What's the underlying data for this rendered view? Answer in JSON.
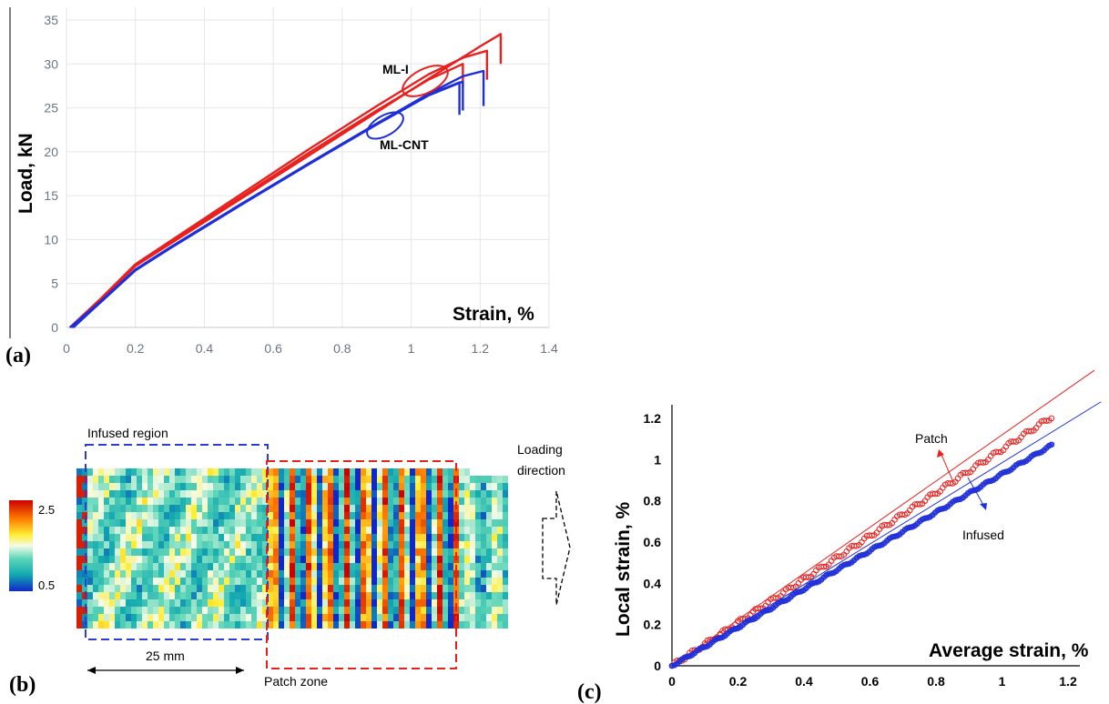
{
  "chart_data": [
    {
      "panel": "(a)",
      "type": "line",
      "xlabel": "Strain, %",
      "ylabel": "Load, kN",
      "xlim": [
        0,
        1.4
      ],
      "ylim": [
        0,
        35
      ],
      "x_ticks": [
        "0",
        "0.2",
        "0.4",
        "0.6",
        "0.8",
        "1",
        "1.2",
        "1.4"
      ],
      "y_ticks": [
        "0",
        "5",
        "10",
        "15",
        "20",
        "25",
        "30",
        "35"
      ],
      "grid": true,
      "colors": {
        "ML-I": "#e8211e",
        "ML-CNT": "#1f2fd8"
      },
      "annotations": [
        {
          "text": "ML-I",
          "x": 1.04,
          "y": 28.1,
          "color": "#e8211e"
        },
        {
          "text": "ML-CNT",
          "x": 0.93,
          "y": 22.6,
          "color": "#1f2fd8"
        }
      ],
      "series": [
        {
          "group": "ML-I",
          "x": [
            0.02,
            0.1,
            0.2,
            0.3,
            0.5,
            0.7,
            0.9,
            1.05,
            1.2,
            1.26
          ],
          "y": [
            0,
            3.2,
            7.0,
            9.5,
            14.5,
            19.5,
            24.5,
            28.3,
            32.0,
            33.4
          ],
          "drop_to": 30.0
        },
        {
          "group": "ML-I",
          "x": [
            0.01,
            0.1,
            0.2,
            0.3,
            0.5,
            0.7,
            0.9,
            1.05,
            1.15,
            1.22
          ],
          "y": [
            0,
            3.3,
            7.2,
            9.8,
            15.0,
            20.2,
            25.2,
            28.8,
            30.7,
            31.5
          ],
          "drop_to": 28.2
        },
        {
          "group": "ML-I",
          "x": [
            0.015,
            0.1,
            0.2,
            0.3,
            0.5,
            0.7,
            0.9,
            1.05,
            1.15
          ],
          "y": [
            0,
            3.2,
            7.0,
            9.6,
            14.7,
            19.8,
            24.7,
            28.2,
            30.0
          ],
          "drop_to": 27.3
        },
        {
          "group": "ML-CNT",
          "x": [
            0.02,
            0.1,
            0.2,
            0.3,
            0.5,
            0.7,
            0.9,
            1.05,
            1.15,
            1.21
          ],
          "y": [
            0,
            2.9,
            6.5,
            9.0,
            13.8,
            18.6,
            23.2,
            26.6,
            28.6,
            29.2
          ],
          "drop_to": 25.2
        },
        {
          "group": "ML-CNT",
          "x": [
            0.015,
            0.1,
            0.2,
            0.3,
            0.5,
            0.7,
            0.9,
            1.05,
            1.15
          ],
          "y": [
            0,
            2.9,
            6.5,
            9.0,
            13.8,
            18.5,
            23.1,
            26.4,
            28.0
          ],
          "drop_to": 24.7
        },
        {
          "group": "ML-CNT",
          "x": [
            0.01,
            0.1,
            0.2,
            0.3,
            0.5,
            0.7,
            0.9,
            1.05,
            1.14
          ],
          "y": [
            0,
            3.0,
            6.6,
            9.1,
            13.9,
            18.6,
            23.2,
            26.5,
            27.9
          ],
          "drop_to": 24.2
        }
      ]
    },
    {
      "panel": "(b)",
      "type": "heatmap",
      "colorbar": {
        "max_label": "2.5",
        "min_label": "0.5"
      },
      "labels": {
        "infused_region": "Infused region",
        "patch_zone": "Patch zone",
        "scale": "25 mm",
        "loading_direction": [
          "Loading",
          "direction"
        ]
      },
      "colors": {
        "infused_box": "#2b3bd6",
        "patch_box": "#e8211e"
      }
    },
    {
      "panel": "(c)",
      "type": "scatter",
      "xlabel": "Average strain, %",
      "ylabel": "Local strain, %",
      "xlim": [
        0,
        1.2
      ],
      "ylim": [
        0,
        1.2
      ],
      "x_ticks": [
        "0",
        "0.2",
        "0.4",
        "0.6",
        "0.8",
        "1",
        "1.2"
      ],
      "y_ticks": [
        "0",
        "0.2",
        "0.4",
        "0.6",
        "0.8",
        "1",
        "1.2"
      ],
      "grid": false,
      "series": [
        {
          "name": "Patch",
          "color": "#e8211e",
          "x_range": [
            0,
            1.15
          ],
          "slope": 1.05,
          "fit_x_max": 1.28,
          "fit_slope": 1.12
        },
        {
          "name": "Infused",
          "color": "#1f2fd8",
          "x_range": [
            0,
            1.15
          ],
          "slope": 0.93,
          "fit_x_max": 1.3,
          "fit_slope": 0.985
        }
      ]
    }
  ]
}
